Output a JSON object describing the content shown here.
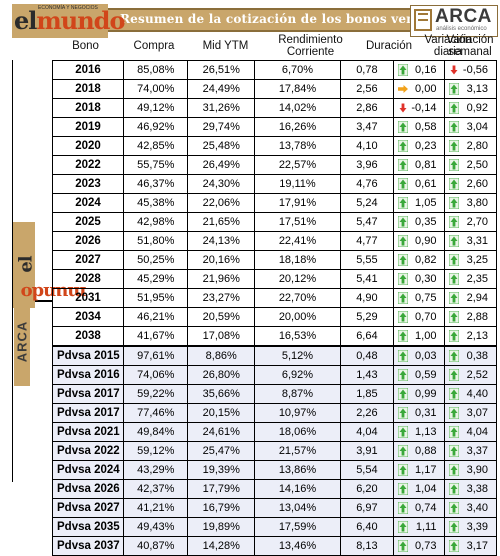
{
  "header": {
    "title": "Resumen de la cotización de los bonos venezolanos",
    "logo_left": "elmundo",
    "logo_left_tagline": "ECONOMÍA Y NEGOCIOS",
    "logo_right": "ARCA",
    "logo_right_sub": "análisis económico"
  },
  "columns": {
    "bono": "Bono",
    "compra": "Compra",
    "mid_ytm": "Mid YTM",
    "rendimiento": "Rendimiento Corriente",
    "duracion": "Duración",
    "var_diaria": "Variación diaria",
    "var_semanal": "Variación semanal"
  },
  "colors": {
    "up": "#3aa83a",
    "down": "#e0322a",
    "flat": "#f2a21a",
    "banner": "#c9a66b",
    "pdvsa_row": "#eceef8"
  },
  "rows": [
    {
      "bono": "2016",
      "compra": "85,08%",
      "ytm": "26,51%",
      "rend": "6,70%",
      "dur": "0,78",
      "vd": "0,16",
      "vd_dir": "up",
      "vs": "-0,56",
      "vs_dir": "down"
    },
    {
      "bono": "2018",
      "compra": "74,00%",
      "ytm": "24,49%",
      "rend": "17,84%",
      "dur": "2,56",
      "vd": "0,00",
      "vd_dir": "flat",
      "vs": "3,13",
      "vs_dir": "up"
    },
    {
      "bono": "2018",
      "compra": "49,12%",
      "ytm": "31,26%",
      "rend": "14,02%",
      "dur": "2,86",
      "vd": "-0,14",
      "vd_dir": "down",
      "vs": "0,92",
      "vs_dir": "up"
    },
    {
      "bono": "2019",
      "compra": "46,92%",
      "ytm": "29,74%",
      "rend": "16,26%",
      "dur": "3,47",
      "vd": "0,58",
      "vd_dir": "up",
      "vs": "3,04",
      "vs_dir": "up"
    },
    {
      "bono": "2020",
      "compra": "42,85%",
      "ytm": "25,48%",
      "rend": "13,78%",
      "dur": "4,10",
      "vd": "0,23",
      "vd_dir": "up",
      "vs": "2,80",
      "vs_dir": "up"
    },
    {
      "bono": "2022",
      "compra": "55,75%",
      "ytm": "26,49%",
      "rend": "22,57%",
      "dur": "3,96",
      "vd": "0,81",
      "vd_dir": "up",
      "vs": "2,50",
      "vs_dir": "up"
    },
    {
      "bono": "2023",
      "compra": "46,37%",
      "ytm": "24,30%",
      "rend": "19,11%",
      "dur": "4,76",
      "vd": "0,61",
      "vd_dir": "up",
      "vs": "2,60",
      "vs_dir": "up"
    },
    {
      "bono": "2024",
      "compra": "45,38%",
      "ytm": "22,06%",
      "rend": "17,91%",
      "dur": "5,24",
      "vd": "1,05",
      "vd_dir": "up",
      "vs": "3,80",
      "vs_dir": "up"
    },
    {
      "bono": "2025",
      "compra": "42,98%",
      "ytm": "21,65%",
      "rend": "17,51%",
      "dur": "5,47",
      "vd": "0,35",
      "vd_dir": "up",
      "vs": "2,70",
      "vs_dir": "up"
    },
    {
      "bono": "2026",
      "compra": "51,80%",
      "ytm": "24,13%",
      "rend": "22,41%",
      "dur": "4,77",
      "vd": "0,90",
      "vd_dir": "up",
      "vs": "3,31",
      "vs_dir": "up"
    },
    {
      "bono": "2027",
      "compra": "50,25%",
      "ytm": "20,16%",
      "rend": "18,18%",
      "dur": "5,55",
      "vd": "0,82",
      "vd_dir": "up",
      "vs": "3,25",
      "vs_dir": "up"
    },
    {
      "bono": "2028",
      "compra": "45,29%",
      "ytm": "21,96%",
      "rend": "20,12%",
      "dur": "5,41",
      "vd": "0,30",
      "vd_dir": "up",
      "vs": "2,35",
      "vs_dir": "up"
    },
    {
      "bono": "2031",
      "compra": "51,95%",
      "ytm": "23,27%",
      "rend": "22,70%",
      "dur": "4,90",
      "vd": "0,75",
      "vd_dir": "up",
      "vs": "2,94",
      "vs_dir": "up"
    },
    {
      "bono": "2034",
      "compra": "46,21%",
      "ytm": "20,59%",
      "rend": "20,00%",
      "dur": "5,29",
      "vd": "0,70",
      "vd_dir": "up",
      "vs": "2,88",
      "vs_dir": "up"
    },
    {
      "bono": "2038",
      "compra": "41,67%",
      "ytm": "17,08%",
      "rend": "16,53%",
      "dur": "6,64",
      "vd": "1,00",
      "vd_dir": "up",
      "vs": "2,13",
      "vs_dir": "up"
    },
    {
      "bono": "Pdvsa 2015",
      "compra": "97,61%",
      "ytm": "8,86%",
      "rend": "5,12%",
      "dur": "0,48",
      "vd": "0,03",
      "vd_dir": "up",
      "vs": "0,38",
      "vs_dir": "up",
      "pdvsa": true
    },
    {
      "bono": "Pdvsa 2016",
      "compra": "74,06%",
      "ytm": "26,80%",
      "rend": "6,92%",
      "dur": "1,43",
      "vd": "0,59",
      "vd_dir": "up",
      "vs": "2,52",
      "vs_dir": "up",
      "pdvsa": true
    },
    {
      "bono": "Pdvsa 2017",
      "compra": "59,22%",
      "ytm": "35,66%",
      "rend": "8,87%",
      "dur": "1,85",
      "vd": "0,99",
      "vd_dir": "up",
      "vs": "4,40",
      "vs_dir": "up",
      "pdvsa": true
    },
    {
      "bono": "Pdvsa 2017",
      "compra": "77,46%",
      "ytm": "20,15%",
      "rend": "10,97%",
      "dur": "2,26",
      "vd": "0,31",
      "vd_dir": "up",
      "vs": "3,07",
      "vs_dir": "up",
      "pdvsa": true
    },
    {
      "bono": "Pdvsa 2021",
      "compra": "49,84%",
      "ytm": "24,61%",
      "rend": "18,06%",
      "dur": "4,04",
      "vd": "1,13",
      "vd_dir": "up",
      "vs": "4,04",
      "vs_dir": "up",
      "pdvsa": true
    },
    {
      "bono": "Pdvsa 2022",
      "compra": "59,12%",
      "ytm": "25,47%",
      "rend": "21,57%",
      "dur": "3,91",
      "vd": "0,88",
      "vd_dir": "up",
      "vs": "3,37",
      "vs_dir": "up",
      "pdvsa": true
    },
    {
      "bono": "Pdvsa 2024",
      "compra": "43,29%",
      "ytm": "19,39%",
      "rend": "13,86%",
      "dur": "5,54",
      "vd": "1,17",
      "vd_dir": "up",
      "vs": "3,90",
      "vs_dir": "up",
      "pdvsa": true
    },
    {
      "bono": "Pdvsa 2026",
      "compra": "42,37%",
      "ytm": "17,79%",
      "rend": "14,16%",
      "dur": "6,20",
      "vd": "1,04",
      "vd_dir": "up",
      "vs": "3,38",
      "vs_dir": "up",
      "pdvsa": true
    },
    {
      "bono": "Pdvsa 2027",
      "compra": "41,21%",
      "ytm": "16,79%",
      "rend": "13,04%",
      "dur": "6,97",
      "vd": "0,74",
      "vd_dir": "up",
      "vs": "3,40",
      "vs_dir": "up",
      "pdvsa": true
    },
    {
      "bono": "Pdvsa 2035",
      "compra": "49,43%",
      "ytm": "19,89%",
      "rend": "17,59%",
      "dur": "6,40",
      "vd": "1,11",
      "vd_dir": "up",
      "vs": "3,39",
      "vs_dir": "up",
      "pdvsa": true
    },
    {
      "bono": "Pdvsa 2037",
      "compra": "40,87%",
      "ytm": "14,28%",
      "rend": "13,46%",
      "dur": "8,13",
      "vd": "0,73",
      "vd_dir": "up",
      "vs": "3,17",
      "vs_dir": "up",
      "pdvsa": true
    }
  ]
}
